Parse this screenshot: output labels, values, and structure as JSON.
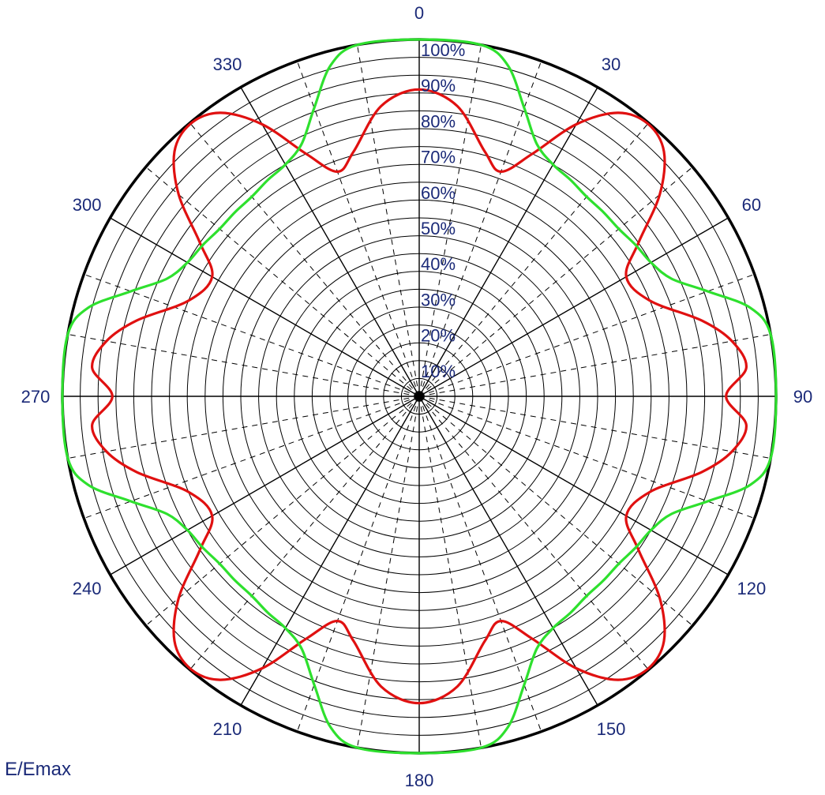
{
  "chart_data": {
    "type": "polar",
    "ylabel": "E/Emax",
    "angle_ticks": [
      "0",
      "30",
      "60",
      "90",
      "120",
      "150",
      "180",
      "210",
      "240",
      "270",
      "300",
      "330"
    ],
    "radial_ticks": [
      "10%",
      "20%",
      "30%",
      "40%",
      "50%",
      "60%",
      "70%",
      "80%",
      "90%",
      "100%"
    ],
    "rlim": [
      0,
      100
    ],
    "grid": true,
    "series": [
      {
        "color": "#e01010",
        "theta_deg": [
          0,
          7.5,
          15,
          20,
          25,
          30,
          35,
          40,
          45,
          50,
          55,
          60,
          67.5,
          75,
          80,
          85,
          90
        ],
        "r_percent": [
          86,
          82,
          71,
          67,
          75,
          88,
          97,
          99.7,
          97,
          88,
          75,
          67,
          70,
          82,
          89,
          92,
          86
        ]
      },
      {
        "color": "#2ee02e",
        "theta_deg": [
          0,
          10,
          15,
          20,
          25,
          30,
          35,
          40,
          45,
          50,
          55,
          60,
          65,
          70,
          75,
          80,
          90
        ],
        "r_percent": [
          100,
          100,
          96,
          86,
          78,
          75,
          74,
          73,
          73,
          73,
          74,
          75,
          78,
          86,
          96,
          100,
          100
        ]
      }
    ]
  }
}
